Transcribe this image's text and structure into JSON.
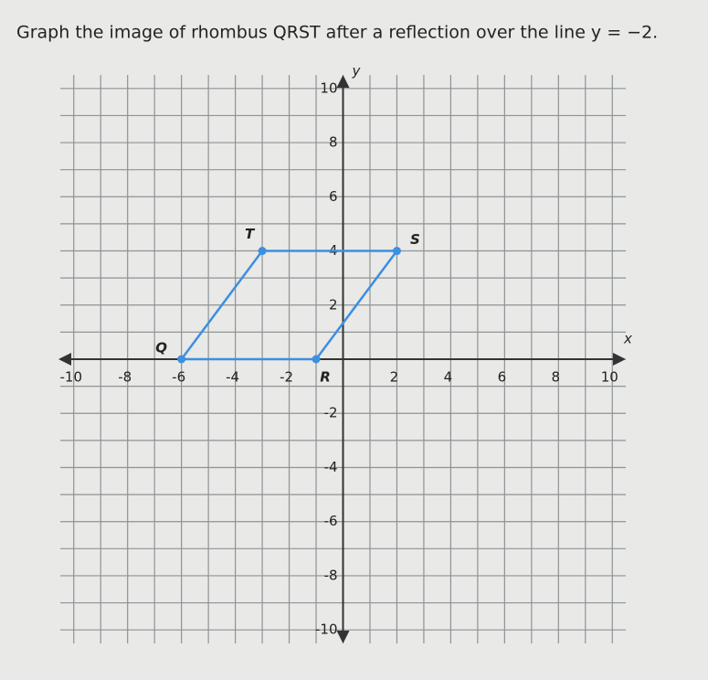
{
  "chart_data": {
    "type": "polygon",
    "title": "Graph the image of rhombus QRST after a reflection over the line y = −2.",
    "xlabel": "x",
    "ylabel": "y",
    "x": [
      -6,
      -1,
      2,
      -3
    ],
    "y": [
      0,
      0,
      4,
      4
    ],
    "point_labels": [
      "Q",
      "R",
      "S",
      "T"
    ],
    "color": "#3d8fe0",
    "xlim": [
      -10.5,
      10.5
    ],
    "ylim": [
      -10.5,
      10.5
    ],
    "xticks": [
      -10,
      -8,
      -6,
      -4,
      -2,
      2,
      4,
      6,
      8,
      10
    ],
    "yticks": [
      -10,
      -8,
      -6,
      -4,
      -2,
      2,
      4,
      6,
      8,
      10
    ],
    "xgrid": [
      -10,
      -9,
      -8,
      -7,
      -6,
      -5,
      -4,
      -3,
      -2,
      -1,
      0,
      1,
      2,
      3,
      4,
      5,
      6,
      7,
      8,
      9,
      10
    ],
    "ygrid": [
      -10,
      -9,
      -8,
      -7,
      -6,
      -5,
      -4,
      -3,
      -2,
      -1,
      0,
      1,
      2,
      3,
      4,
      5,
      6,
      7,
      8,
      9,
      10
    ]
  }
}
